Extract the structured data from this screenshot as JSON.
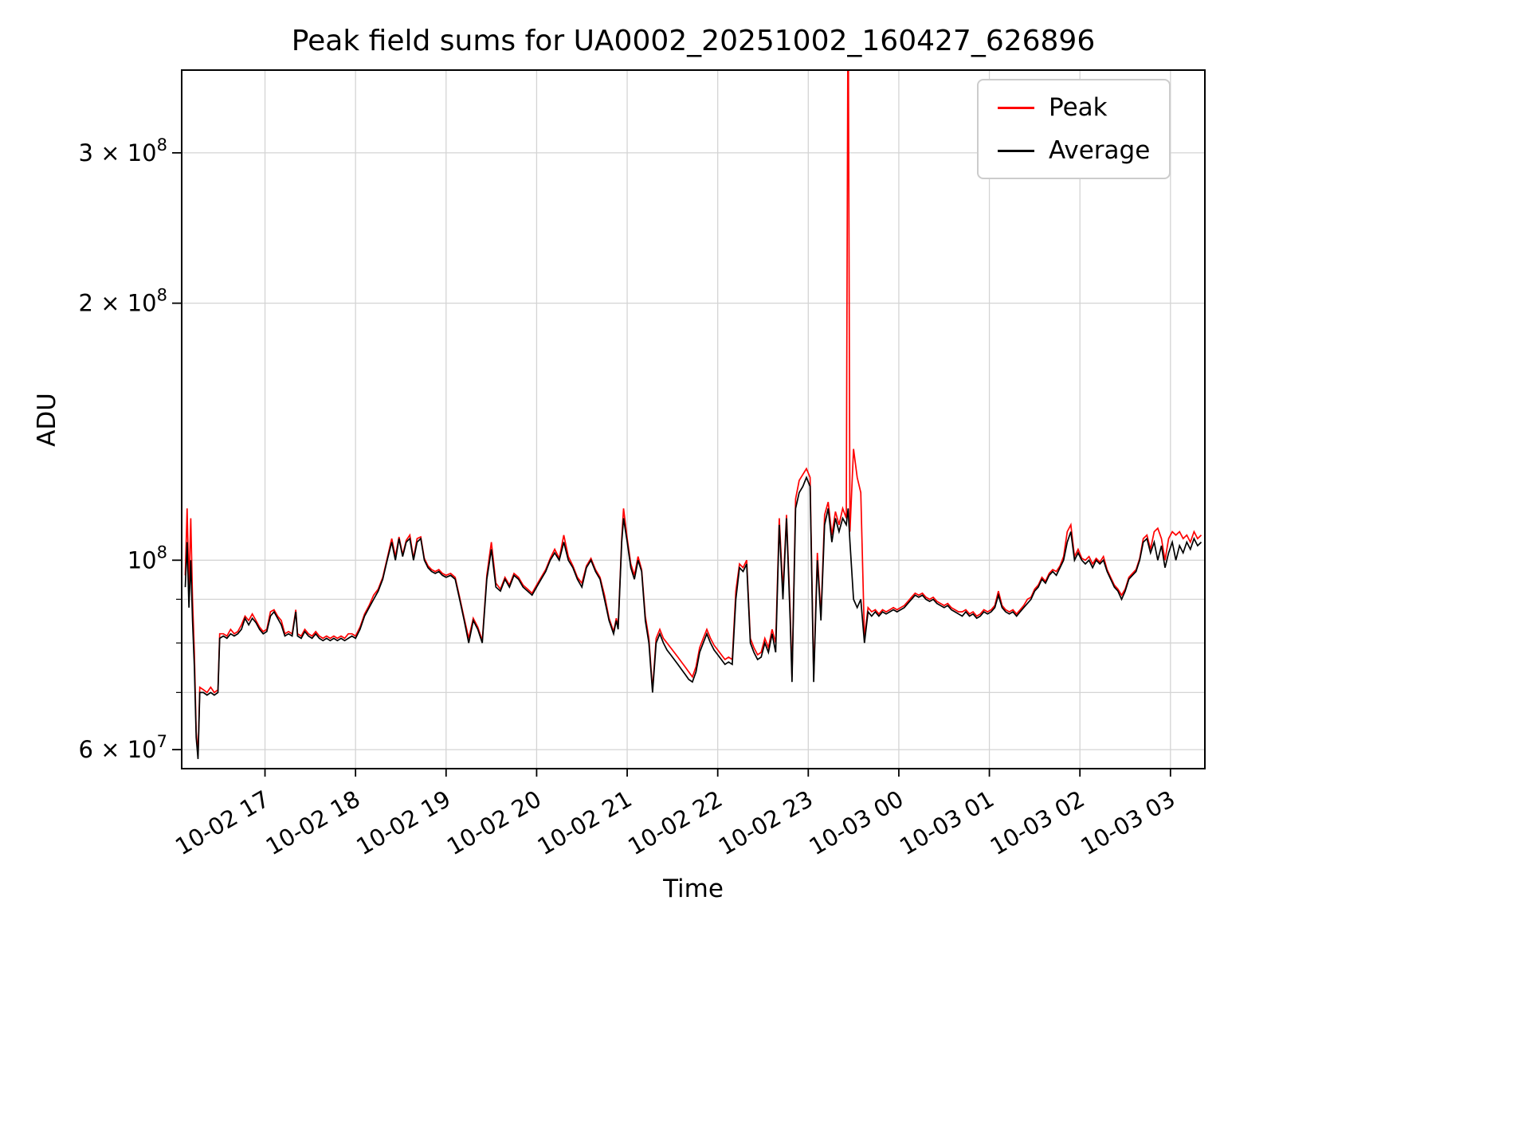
{
  "chart_data": {
    "type": "line",
    "title": "Peak field sums for UA0002_20251002_160427_626896",
    "xlabel": "Time",
    "ylabel": "ADU",
    "yscale": "log",
    "grid": true,
    "legend_position": "upper right",
    "value_scale": 100000000,
    "ylim_e8": [
      0.57,
      3.75
    ],
    "xlim_hours": [
      16.08,
      27.38
    ],
    "x_unit": "hours since 2025-10-02 00:00 (>=24 means 10-03)",
    "legend": [
      {
        "name": "Peak",
        "color": "#ff0000"
      },
      {
        "name": "Average",
        "color": "#000000"
      }
    ],
    "xticks": [
      {
        "hour": 17,
        "label": "10-02 17"
      },
      {
        "hour": 18,
        "label": "10-02 18"
      },
      {
        "hour": 19,
        "label": "10-02 19"
      },
      {
        "hour": 20,
        "label": "10-02 20"
      },
      {
        "hour": 21,
        "label": "10-02 21"
      },
      {
        "hour": 22,
        "label": "10-02 22"
      },
      {
        "hour": 23,
        "label": "10-02 23"
      },
      {
        "hour": 24,
        "label": "10-03 00"
      },
      {
        "hour": 25,
        "label": "10-03 01"
      },
      {
        "hour": 26,
        "label": "10-03 02"
      },
      {
        "hour": 27,
        "label": "10-03 03"
      }
    ],
    "yticks": [
      {
        "value_e8": 0.6,
        "pre": "6 × 10",
        "sup": "7"
      },
      {
        "value_e8": 1.0,
        "pre": "10",
        "sup": "8"
      },
      {
        "value_e8": 2.0,
        "pre": "2 × 10",
        "sup": "8"
      },
      {
        "value_e8": 3.0,
        "pre": "3 × 10",
        "sup": "8"
      }
    ],
    "y_minor_ticks_e8": [
      0.7,
      0.8,
      0.9
    ],
    "series_format": "[t_hours, average_x1e8, peak_x1e8]",
    "points": [
      [
        16.12,
        0.93,
        0.96
      ],
      [
        16.14,
        1.05,
        1.15
      ],
      [
        16.16,
        0.88,
        0.93
      ],
      [
        16.18,
        1.0,
        1.12
      ],
      [
        16.2,
        0.85,
        0.9
      ],
      [
        16.22,
        0.75,
        0.78
      ],
      [
        16.24,
        0.62,
        0.63
      ],
      [
        16.26,
        0.585,
        0.59
      ],
      [
        16.28,
        0.7,
        0.71
      ],
      [
        16.32,
        0.7,
        0.705
      ],
      [
        16.36,
        0.695,
        0.7
      ],
      [
        16.4,
        0.7,
        0.71
      ],
      [
        16.44,
        0.695,
        0.7
      ],
      [
        16.48,
        0.7,
        0.705
      ],
      [
        16.5,
        0.81,
        0.82
      ],
      [
        16.54,
        0.815,
        0.82
      ],
      [
        16.58,
        0.81,
        0.815
      ],
      [
        16.62,
        0.82,
        0.83
      ],
      [
        16.66,
        0.815,
        0.82
      ],
      [
        16.7,
        0.82,
        0.825
      ],
      [
        16.74,
        0.83,
        0.84
      ],
      [
        16.78,
        0.855,
        0.86
      ],
      [
        16.82,
        0.84,
        0.85
      ],
      [
        16.86,
        0.855,
        0.865
      ],
      [
        16.9,
        0.845,
        0.85
      ],
      [
        16.94,
        0.83,
        0.835
      ],
      [
        16.98,
        0.82,
        0.825
      ],
      [
        17.02,
        0.825,
        0.83
      ],
      [
        17.06,
        0.86,
        0.87
      ],
      [
        17.1,
        0.87,
        0.875
      ],
      [
        17.14,
        0.855,
        0.86
      ],
      [
        17.18,
        0.84,
        0.85
      ],
      [
        17.22,
        0.815,
        0.82
      ],
      [
        17.26,
        0.82,
        0.825
      ],
      [
        17.3,
        0.815,
        0.82
      ],
      [
        17.34,
        0.87,
        0.875
      ],
      [
        17.36,
        0.815,
        0.82
      ],
      [
        17.4,
        0.81,
        0.815
      ],
      [
        17.44,
        0.825,
        0.83
      ],
      [
        17.48,
        0.815,
        0.82
      ],
      [
        17.52,
        0.81,
        0.815
      ],
      [
        17.56,
        0.82,
        0.825
      ],
      [
        17.6,
        0.81,
        0.815
      ],
      [
        17.64,
        0.805,
        0.81
      ],
      [
        17.68,
        0.81,
        0.815
      ],
      [
        17.72,
        0.805,
        0.81
      ],
      [
        17.76,
        0.81,
        0.815
      ],
      [
        17.8,
        0.805,
        0.81
      ],
      [
        17.84,
        0.81,
        0.815
      ],
      [
        17.88,
        0.805,
        0.81
      ],
      [
        17.92,
        0.81,
        0.82
      ],
      [
        17.96,
        0.815,
        0.82
      ],
      [
        18.0,
        0.81,
        0.815
      ],
      [
        18.05,
        0.83,
        0.835
      ],
      [
        18.1,
        0.86,
        0.865
      ],
      [
        18.15,
        0.88,
        0.885
      ],
      [
        18.2,
        0.9,
        0.91
      ],
      [
        18.25,
        0.92,
        0.925
      ],
      [
        18.3,
        0.95,
        0.955
      ],
      [
        18.35,
        1.0,
        1.005
      ],
      [
        18.4,
        1.05,
        1.06
      ],
      [
        18.44,
        1.0,
        1.01
      ],
      [
        18.48,
        1.06,
        1.065
      ],
      [
        18.52,
        1.01,
        1.015
      ],
      [
        18.56,
        1.05,
        1.055
      ],
      [
        18.6,
        1.06,
        1.07
      ],
      [
        18.64,
        1.0,
        1.005
      ],
      [
        18.68,
        1.05,
        1.06
      ],
      [
        18.72,
        1.06,
        1.065
      ],
      [
        18.76,
        1.0,
        1.005
      ],
      [
        18.8,
        0.98,
        0.985
      ],
      [
        18.84,
        0.97,
        0.975
      ],
      [
        18.88,
        0.965,
        0.97
      ],
      [
        18.92,
        0.97,
        0.975
      ],
      [
        18.96,
        0.96,
        0.965
      ],
      [
        19.0,
        0.955,
        0.96
      ],
      [
        19.05,
        0.96,
        0.965
      ],
      [
        19.1,
        0.95,
        0.955
      ],
      [
        19.15,
        0.9,
        0.905
      ],
      [
        19.2,
        0.85,
        0.855
      ],
      [
        19.25,
        0.8,
        0.81
      ],
      [
        19.3,
        0.85,
        0.855
      ],
      [
        19.35,
        0.83,
        0.835
      ],
      [
        19.4,
        0.8,
        0.805
      ],
      [
        19.45,
        0.95,
        0.96
      ],
      [
        19.5,
        1.03,
        1.05
      ],
      [
        19.55,
        0.93,
        0.94
      ],
      [
        19.6,
        0.92,
        0.925
      ],
      [
        19.65,
        0.95,
        0.955
      ],
      [
        19.7,
        0.93,
        0.935
      ],
      [
        19.75,
        0.96,
        0.965
      ],
      [
        19.8,
        0.95,
        0.955
      ],
      [
        19.85,
        0.93,
        0.935
      ],
      [
        19.9,
        0.92,
        0.925
      ],
      [
        19.95,
        0.91,
        0.915
      ],
      [
        20.0,
        0.93,
        0.935
      ],
      [
        20.05,
        0.95,
        0.955
      ],
      [
        20.1,
        0.97,
        0.975
      ],
      [
        20.15,
        1.0,
        1.005
      ],
      [
        20.2,
        1.02,
        1.03
      ],
      [
        20.25,
        1.0,
        1.005
      ],
      [
        20.3,
        1.05,
        1.07
      ],
      [
        20.35,
        1.0,
        1.01
      ],
      [
        20.4,
        0.98,
        0.985
      ],
      [
        20.45,
        0.95,
        0.955
      ],
      [
        20.5,
        0.93,
        0.94
      ],
      [
        20.55,
        0.98,
        0.985
      ],
      [
        20.6,
        1.0,
        1.005
      ],
      [
        20.65,
        0.97,
        0.975
      ],
      [
        20.7,
        0.95,
        0.955
      ],
      [
        20.75,
        0.9,
        0.91
      ],
      [
        20.8,
        0.85,
        0.855
      ],
      [
        20.85,
        0.82,
        0.825
      ],
      [
        20.88,
        0.85,
        0.855
      ],
      [
        20.9,
        0.83,
        0.835
      ],
      [
        20.94,
        1.05,
        1.06
      ],
      [
        20.96,
        1.12,
        1.15
      ],
      [
        21.0,
        1.05,
        1.06
      ],
      [
        21.04,
        0.98,
        0.99
      ],
      [
        21.08,
        0.95,
        0.96
      ],
      [
        21.12,
        1.0,
        1.01
      ],
      [
        21.16,
        0.97,
        0.975
      ],
      [
        21.2,
        0.85,
        0.86
      ],
      [
        21.24,
        0.8,
        0.81
      ],
      [
        21.28,
        0.7,
        0.705
      ],
      [
        21.32,
        0.8,
        0.81
      ],
      [
        21.36,
        0.82,
        0.83
      ],
      [
        21.4,
        0.8,
        0.81
      ],
      [
        21.44,
        0.785,
        0.8
      ],
      [
        21.48,
        0.775,
        0.79
      ],
      [
        21.52,
        0.765,
        0.78
      ],
      [
        21.56,
        0.755,
        0.77
      ],
      [
        21.6,
        0.745,
        0.76
      ],
      [
        21.64,
        0.735,
        0.75
      ],
      [
        21.68,
        0.725,
        0.74
      ],
      [
        21.72,
        0.72,
        0.73
      ],
      [
        21.76,
        0.74,
        0.75
      ],
      [
        21.8,
        0.78,
        0.79
      ],
      [
        21.84,
        0.8,
        0.81
      ],
      [
        21.88,
        0.82,
        0.83
      ],
      [
        21.92,
        0.8,
        0.81
      ],
      [
        21.96,
        0.785,
        0.795
      ],
      [
        22.0,
        0.775,
        0.785
      ],
      [
        22.04,
        0.765,
        0.775
      ],
      [
        22.08,
        0.755,
        0.765
      ],
      [
        22.12,
        0.76,
        0.77
      ],
      [
        22.16,
        0.755,
        0.765
      ],
      [
        22.2,
        0.9,
        0.92
      ],
      [
        22.24,
        0.98,
        0.99
      ],
      [
        22.28,
        0.97,
        0.98
      ],
      [
        22.32,
        0.99,
        1.0
      ],
      [
        22.36,
        0.8,
        0.81
      ],
      [
        22.4,
        0.78,
        0.79
      ],
      [
        22.44,
        0.765,
        0.775
      ],
      [
        22.48,
        0.77,
        0.78
      ],
      [
        22.52,
        0.8,
        0.81
      ],
      [
        22.56,
        0.78,
        0.79
      ],
      [
        22.6,
        0.82,
        0.83
      ],
      [
        22.64,
        0.78,
        0.8
      ],
      [
        22.68,
        1.1,
        1.12
      ],
      [
        22.72,
        0.9,
        0.92
      ],
      [
        22.76,
        1.12,
        1.13
      ],
      [
        22.8,
        0.85,
        0.87
      ],
      [
        22.82,
        0.72,
        0.73
      ],
      [
        22.86,
        1.15,
        1.18
      ],
      [
        22.9,
        1.2,
        1.24
      ],
      [
        22.94,
        1.22,
        1.26
      ],
      [
        22.98,
        1.25,
        1.28
      ],
      [
        23.02,
        1.22,
        1.25
      ],
      [
        23.06,
        0.72,
        0.73
      ],
      [
        23.1,
        1.0,
        1.02
      ],
      [
        23.14,
        0.85,
        0.86
      ],
      [
        23.18,
        1.1,
        1.13
      ],
      [
        23.22,
        1.15,
        1.17
      ],
      [
        23.26,
        1.05,
        1.07
      ],
      [
        23.3,
        1.12,
        1.14
      ],
      [
        23.34,
        1.08,
        1.1
      ],
      [
        23.38,
        1.12,
        1.15
      ],
      [
        23.42,
        1.1,
        1.12
      ],
      [
        23.44,
        1.15,
        5.0
      ],
      [
        23.46,
        1.05,
        1.08
      ],
      [
        23.5,
        0.9,
        1.35
      ],
      [
        23.54,
        0.88,
        1.25
      ],
      [
        23.58,
        0.9,
        1.2
      ],
      [
        23.62,
        0.8,
        0.81
      ],
      [
        23.66,
        0.87,
        0.88
      ],
      [
        23.7,
        0.86,
        0.87
      ],
      [
        23.74,
        0.87,
        0.875
      ],
      [
        23.78,
        0.86,
        0.865
      ],
      [
        23.82,
        0.87,
        0.875
      ],
      [
        23.86,
        0.865,
        0.87
      ],
      [
        23.9,
        0.87,
        0.875
      ],
      [
        23.94,
        0.875,
        0.88
      ],
      [
        23.98,
        0.87,
        0.875
      ],
      [
        24.02,
        0.875,
        0.88
      ],
      [
        24.06,
        0.88,
        0.885
      ],
      [
        24.1,
        0.89,
        0.895
      ],
      [
        24.14,
        0.9,
        0.905
      ],
      [
        24.18,
        0.91,
        0.915
      ],
      [
        24.22,
        0.905,
        0.91
      ],
      [
        24.26,
        0.91,
        0.915
      ],
      [
        24.3,
        0.9,
        0.905
      ],
      [
        24.34,
        0.895,
        0.9
      ],
      [
        24.38,
        0.9,
        0.905
      ],
      [
        24.42,
        0.89,
        0.895
      ],
      [
        24.46,
        0.885,
        0.89
      ],
      [
        24.5,
        0.88,
        0.885
      ],
      [
        24.54,
        0.885,
        0.89
      ],
      [
        24.58,
        0.875,
        0.88
      ],
      [
        24.62,
        0.87,
        0.875
      ],
      [
        24.66,
        0.865,
        0.87
      ],
      [
        24.7,
        0.86,
        0.87
      ],
      [
        24.74,
        0.87,
        0.875
      ],
      [
        24.78,
        0.86,
        0.865
      ],
      [
        24.82,
        0.865,
        0.87
      ],
      [
        24.86,
        0.855,
        0.86
      ],
      [
        24.9,
        0.86,
        0.865
      ],
      [
        24.94,
        0.87,
        0.875
      ],
      [
        24.98,
        0.865,
        0.87
      ],
      [
        25.02,
        0.87,
        0.875
      ],
      [
        25.06,
        0.88,
        0.885
      ],
      [
        25.1,
        0.91,
        0.92
      ],
      [
        25.14,
        0.88,
        0.885
      ],
      [
        25.18,
        0.87,
        0.875
      ],
      [
        25.22,
        0.865,
        0.87
      ],
      [
        25.26,
        0.87,
        0.875
      ],
      [
        25.3,
        0.86,
        0.865
      ],
      [
        25.34,
        0.87,
        0.875
      ],
      [
        25.38,
        0.88,
        0.885
      ],
      [
        25.42,
        0.89,
        0.9
      ],
      [
        25.46,
        0.9,
        0.905
      ],
      [
        25.5,
        0.92,
        0.925
      ],
      [
        25.54,
        0.93,
        0.935
      ],
      [
        25.58,
        0.95,
        0.955
      ],
      [
        25.62,
        0.94,
        0.945
      ],
      [
        25.66,
        0.96,
        0.965
      ],
      [
        25.7,
        0.97,
        0.975
      ],
      [
        25.74,
        0.96,
        0.97
      ],
      [
        25.78,
        0.98,
        0.985
      ],
      [
        25.82,
        1.0,
        1.01
      ],
      [
        25.86,
        1.05,
        1.08
      ],
      [
        25.9,
        1.08,
        1.1
      ],
      [
        25.94,
        1.0,
        1.01
      ],
      [
        25.98,
        1.02,
        1.03
      ],
      [
        26.02,
        1.0,
        1.005
      ],
      [
        26.06,
        0.99,
        1.0
      ],
      [
        26.1,
        1.0,
        1.01
      ],
      [
        26.14,
        0.98,
        0.99
      ],
      [
        26.18,
        1.0,
        1.005
      ],
      [
        26.22,
        0.99,
        0.995
      ],
      [
        26.26,
        1.0,
        1.01
      ],
      [
        26.3,
        0.97,
        0.975
      ],
      [
        26.34,
        0.95,
        0.955
      ],
      [
        26.38,
        0.93,
        0.935
      ],
      [
        26.42,
        0.92,
        0.925
      ],
      [
        26.46,
        0.9,
        0.91
      ],
      [
        26.5,
        0.92,
        0.925
      ],
      [
        26.54,
        0.95,
        0.955
      ],
      [
        26.58,
        0.96,
        0.965
      ],
      [
        26.62,
        0.97,
        0.975
      ],
      [
        26.66,
        1.0,
        1.005
      ],
      [
        26.7,
        1.05,
        1.06
      ],
      [
        26.74,
        1.06,
        1.07
      ],
      [
        26.78,
        1.02,
        1.03
      ],
      [
        26.82,
        1.05,
        1.08
      ],
      [
        26.86,
        1.0,
        1.09
      ],
      [
        26.9,
        1.04,
        1.06
      ],
      [
        26.94,
        0.98,
        1.0
      ],
      [
        26.98,
        1.02,
        1.06
      ],
      [
        27.02,
        1.05,
        1.08
      ],
      [
        27.06,
        1.0,
        1.07
      ],
      [
        27.1,
        1.04,
        1.08
      ],
      [
        27.14,
        1.02,
        1.06
      ],
      [
        27.18,
        1.05,
        1.07
      ],
      [
        27.22,
        1.03,
        1.05
      ],
      [
        27.26,
        1.06,
        1.08
      ],
      [
        27.3,
        1.04,
        1.06
      ],
      [
        27.34,
        1.05,
        1.07
      ]
    ]
  }
}
